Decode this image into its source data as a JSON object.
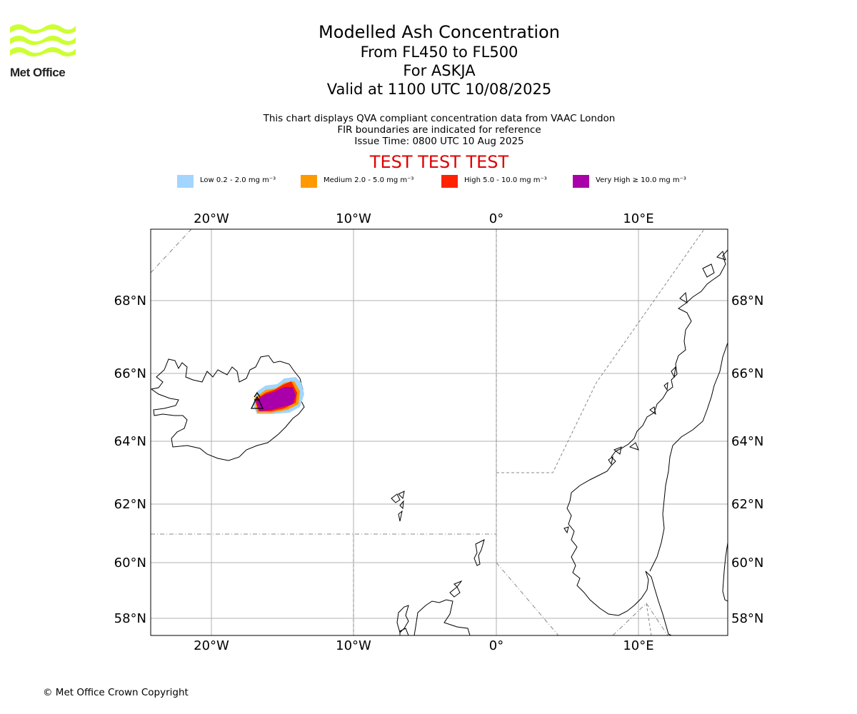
{
  "logo": {
    "name": "Met Office",
    "icon": "met-office-logo-icon",
    "color": "#ccff33"
  },
  "title": {
    "line1": "Modelled Ash Concentration",
    "line2": "From FL450 to FL500",
    "line3": "For ASKJA",
    "line4": "Valid at 1100 UTC 10/08/2025"
  },
  "subtitle": {
    "line1": "This chart displays QVA compliant concentration data from VAAC London",
    "line2": "FIR boundaries are indicated for reference",
    "line3": "Issue Time: 0800 UTC 10 Aug 2025"
  },
  "banner": {
    "text": "TEST TEST TEST",
    "color": "#e00000"
  },
  "legend": [
    {
      "label": "Low 0.2 - 2.0 mg m⁻³",
      "color": "#a3d5ff"
    },
    {
      "label": "Medium 2.0 - 5.0 mg m⁻³",
      "color": "#ff9900"
    },
    {
      "label": "High 5.0 - 10.0 mg m⁻³",
      "color": "#ff2200"
    },
    {
      "label": "Very High ≥ 10.0 mg m⁻³",
      "color": "#aa00aa"
    }
  ],
  "map": {
    "lon_labels": [
      "20°W",
      "10°W",
      "0°",
      "10°E"
    ],
    "lat_labels": [
      "68°N",
      "66°N",
      "64°N",
      "62°N",
      "60°N",
      "58°N"
    ],
    "volcano_icon": "volcano-icon"
  },
  "footer": {
    "copyright": "© Met Office Crown Copyright"
  }
}
